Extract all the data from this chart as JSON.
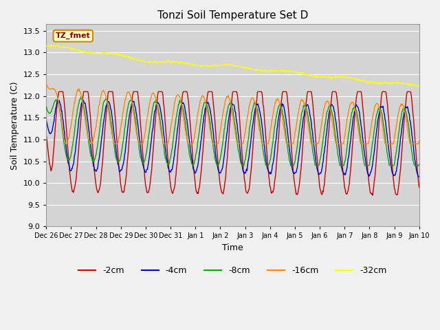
{
  "title": "Tonzi Soil Temperature Set D",
  "xlabel": "Time",
  "ylabel": "Soil Temperature (C)",
  "ylim": [
    9.0,
    13.5
  ],
  "yticks": [
    9.0,
    9.5,
    10.0,
    10.5,
    11.0,
    11.5,
    12.0,
    12.5,
    13.0,
    13.5
  ],
  "colors": {
    "-2cm": "#cc0000",
    "-4cm": "#0000cc",
    "-8cm": "#00aa00",
    "-16cm": "#ff8800",
    "-32cm": "#ffff00"
  },
  "legend_label": "TZ_fmet",
  "fig_bg": "#f0f0f0",
  "plot_bg": "#d4d4d4",
  "grid_color": "#ffffff"
}
